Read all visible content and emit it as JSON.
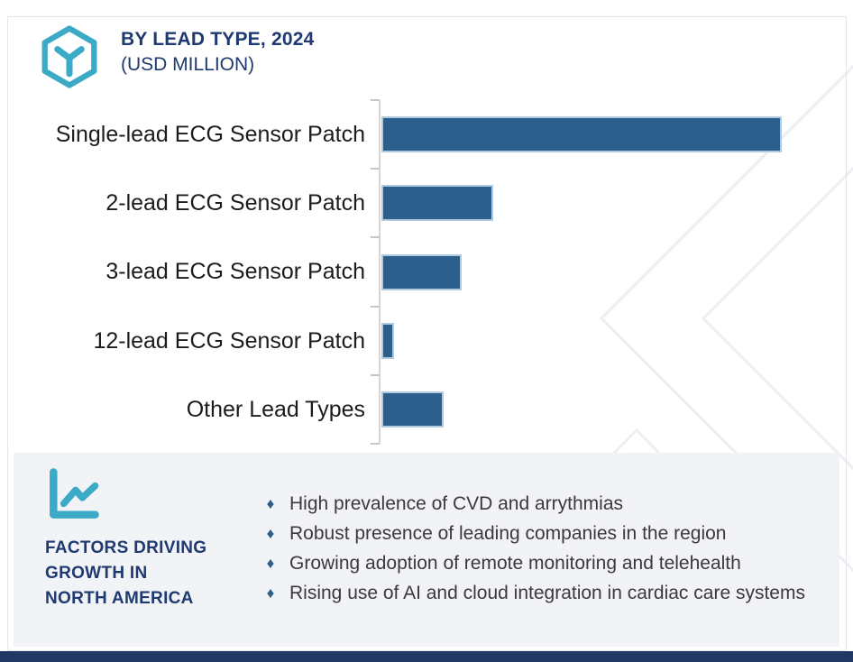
{
  "header": {
    "icon": "hexagon-cube-icon",
    "title_line1": "BY LEAD TYPE, 2024",
    "title_line2": "(USD MILLION)"
  },
  "chart_data": {
    "type": "bar",
    "orientation": "horizontal",
    "title": "BY LEAD TYPE, 2024 (USD MILLION)",
    "unit": "USD Million",
    "categories": [
      "Single-lead ECG Sensor Patch",
      "2-lead ECG Sensor Patch",
      "3-lead ECG Sensor Patch",
      "12-lead ECG Sensor Patch",
      "Other Lead Types"
    ],
    "values": [
      100,
      28,
      20,
      3.2,
      15.5
    ],
    "value_scale": "relative estimate, longest bar = 100 (no numeric axis labels shown in figure)",
    "bar_color": "#2D5F8C",
    "bar_border_color": "#AFC9DE",
    "axis": {
      "numeric_labels_visible": false,
      "gridlines": false,
      "tick_count": 6
    }
  },
  "factors_panel": {
    "icon": "line-chart-icon",
    "heading_line1": "FACTORS DRIVING",
    "heading_line2": "GROWTH IN",
    "heading_line3": "NORTH AMERICA",
    "bullet_marker": "♦",
    "bullets": [
      "High prevalence of CVD and arrythmias",
      "Robust presence of leading companies in the region",
      "Growing adoption of remote monitoring and telehealth",
      "Rising use of AI and cloud integration in cardiac care systems"
    ]
  },
  "colors": {
    "accent_teal": "#3BAAC6",
    "navy_text": "#1E3A70",
    "bar_fill": "#2D5F8C",
    "bar_border": "#AFC9DE",
    "panel_background": "#F2F3F7",
    "footer_bar": "#1F3864",
    "watermark_line": "#EEEEF2",
    "axis_line": "#D6D6D6"
  }
}
